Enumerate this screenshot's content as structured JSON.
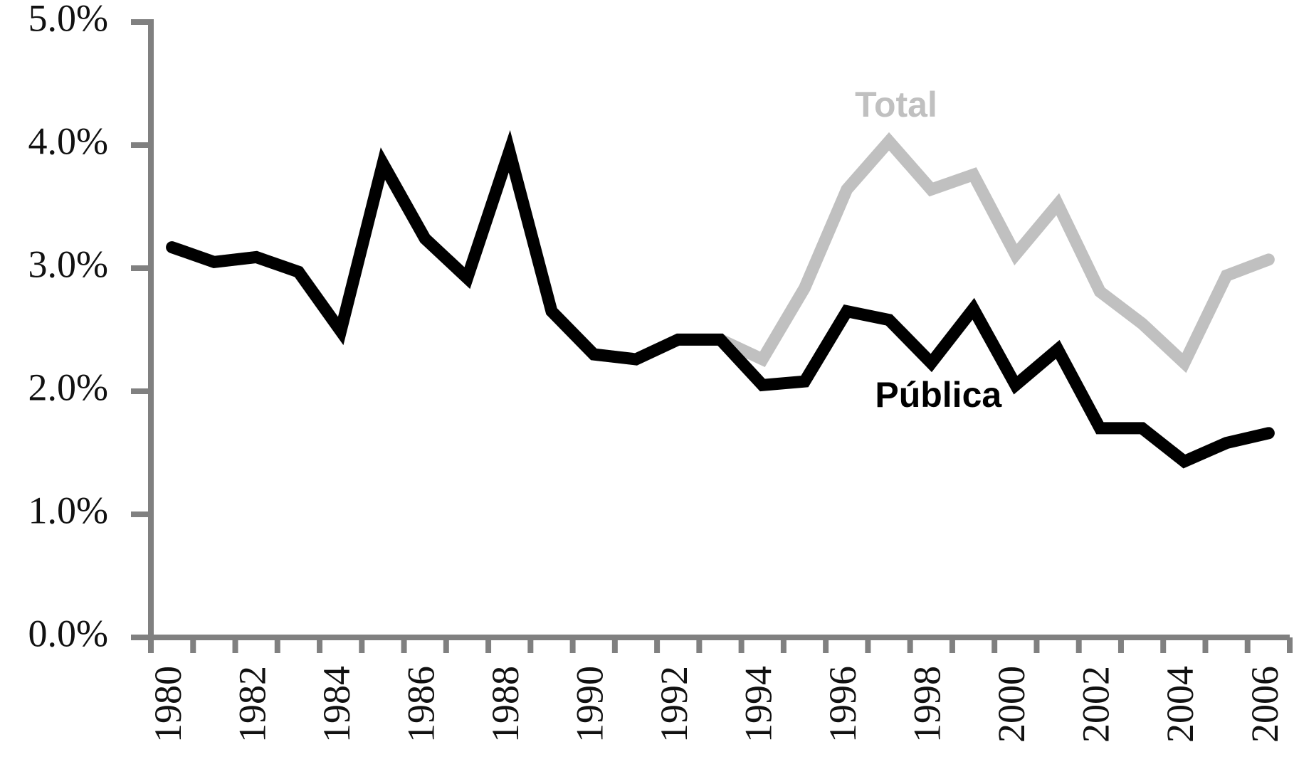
{
  "chart_data": {
    "type": "line",
    "categories": [
      "1980",
      null,
      "1982",
      null,
      "1984",
      null,
      "1986",
      null,
      "1988",
      null,
      "1990",
      null,
      "1992",
      null,
      "1994",
      null,
      "1996",
      null,
      "1998",
      null,
      "2000",
      null,
      "2002",
      null,
      "2004",
      null,
      "2006"
    ],
    "series": [
      {
        "name": "Total",
        "color": "#c0c0c0",
        "values": [
          3.17,
          3.05,
          3.09,
          2.97,
          2.49,
          3.85,
          3.24,
          2.92,
          3.95,
          2.65,
          2.3,
          2.26,
          2.42,
          2.42,
          2.26,
          2.84,
          3.64,
          4.03,
          3.64,
          3.76,
          3.11,
          3.52,
          2.81,
          2.55,
          2.23,
          2.94,
          3.07
        ]
      },
      {
        "name": "Pública",
        "color": "#000000",
        "values": [
          3.17,
          3.05,
          3.09,
          2.97,
          2.49,
          3.85,
          3.24,
          2.92,
          3.95,
          2.65,
          2.3,
          2.26,
          2.42,
          2.42,
          2.05,
          2.08,
          2.65,
          2.58,
          2.23,
          2.67,
          2.05,
          2.34,
          1.7,
          1.7,
          1.43,
          1.58,
          1.66
        ]
      }
    ],
    "ylim": [
      0,
      5
    ],
    "yticks": [
      {
        "value": 0,
        "label": "0.0%"
      },
      {
        "value": 1,
        "label": "1.0%"
      },
      {
        "value": 2,
        "label": "2.0%"
      },
      {
        "value": 3,
        "label": "3.0%"
      },
      {
        "value": 4,
        "label": "4.0%"
      },
      {
        "value": 5,
        "label": "5.0%"
      }
    ],
    "grid": false
  }
}
